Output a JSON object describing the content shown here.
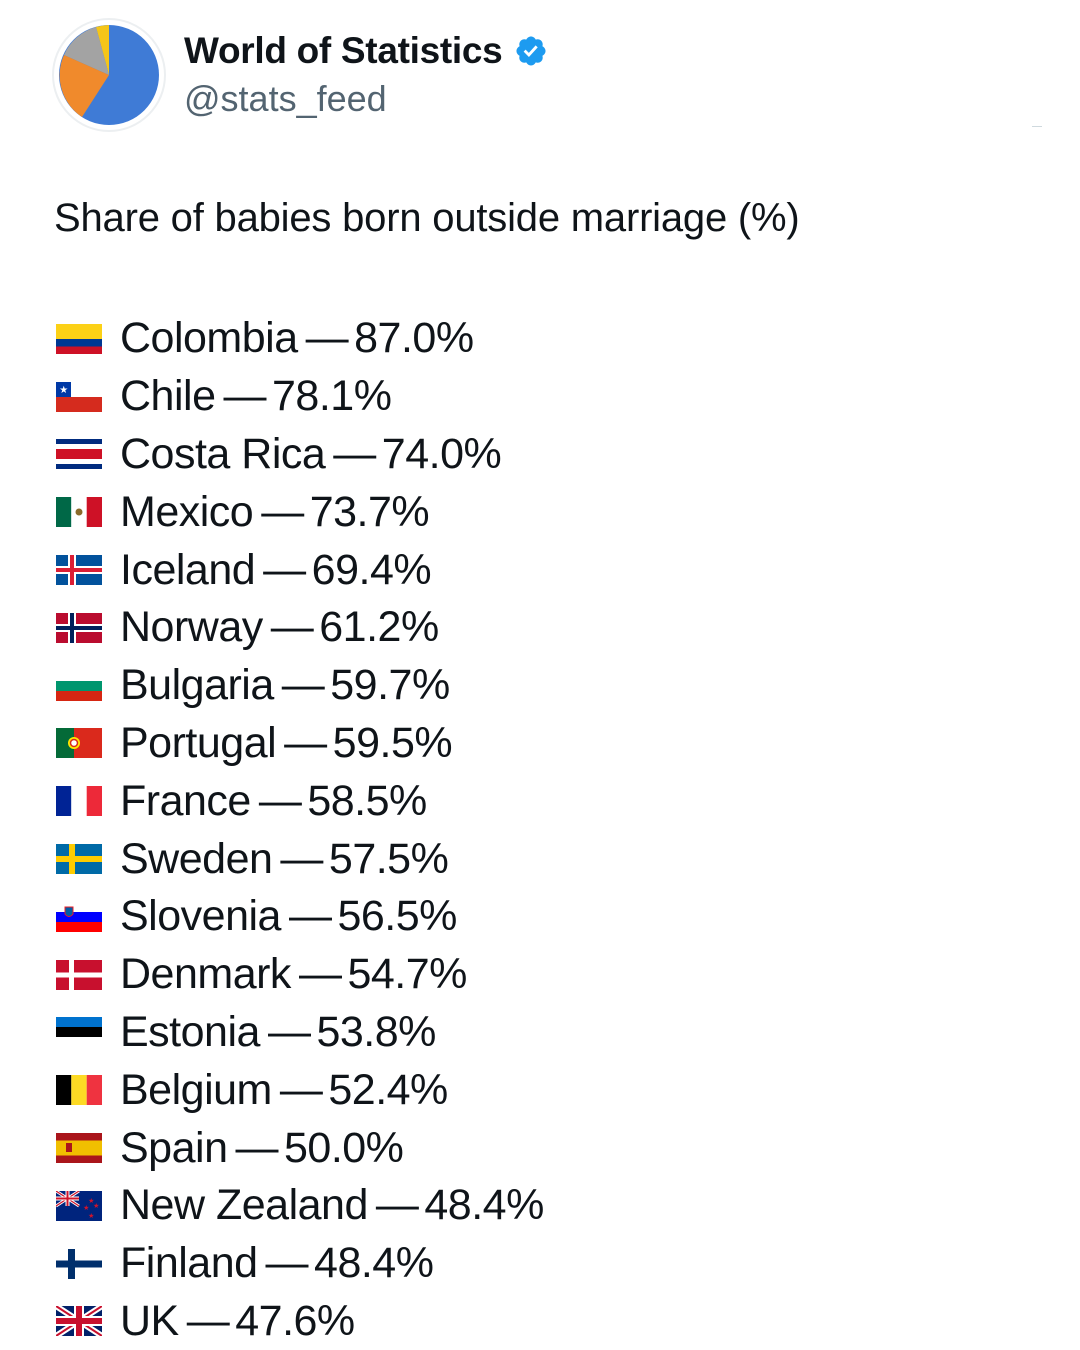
{
  "account": {
    "name": "World of Statistics",
    "handle": "@stats_feed",
    "verified_icon": "verified-badge-icon",
    "accent_color": "#1d9bf0"
  },
  "post": {
    "title": "Share of babies born outside marriage (%)",
    "separator": "—",
    "rows": [
      {
        "country": "Colombia",
        "value": "87.0%",
        "flag_icon": "colombia-flag-icon"
      },
      {
        "country": "Chile",
        "value": "78.1%",
        "flag_icon": "chile-flag-icon"
      },
      {
        "country": "Costa Rica",
        "value": "74.0%",
        "flag_icon": "costa-rica-flag-icon"
      },
      {
        "country": "Mexico",
        "value": "73.7%",
        "flag_icon": "mexico-flag-icon"
      },
      {
        "country": "Iceland",
        "value": "69.4%",
        "flag_icon": "iceland-flag-icon"
      },
      {
        "country": "Norway",
        "value": "61.2%",
        "flag_icon": "norway-flag-icon"
      },
      {
        "country": "Bulgaria",
        "value": "59.7%",
        "flag_icon": "bulgaria-flag-icon"
      },
      {
        "country": "Portugal",
        "value": "59.5%",
        "flag_icon": "portugal-flag-icon"
      },
      {
        "country": "France",
        "value": "58.5%",
        "flag_icon": "france-flag-icon"
      },
      {
        "country": "Sweden",
        "value": "57.5%",
        "flag_icon": "sweden-flag-icon"
      },
      {
        "country": "Slovenia",
        "value": "56.5%",
        "flag_icon": "slovenia-flag-icon"
      },
      {
        "country": "Denmark",
        "value": "54.7%",
        "flag_icon": "denmark-flag-icon"
      },
      {
        "country": "Estonia",
        "value": "53.8%",
        "flag_icon": "estonia-flag-icon"
      },
      {
        "country": "Belgium",
        "value": "52.4%",
        "flag_icon": "belgium-flag-icon"
      },
      {
        "country": "Spain",
        "value": "50.0%",
        "flag_icon": "spain-flag-icon"
      },
      {
        "country": "New Zealand",
        "value": "48.4%",
        "flag_icon": "new-zealand-flag-icon"
      },
      {
        "country": "Finland",
        "value": "48.4%",
        "flag_icon": "finland-flag-icon"
      },
      {
        "country": "UK",
        "value": "47.6%",
        "flag_icon": "uk-flag-icon"
      }
    ]
  }
}
